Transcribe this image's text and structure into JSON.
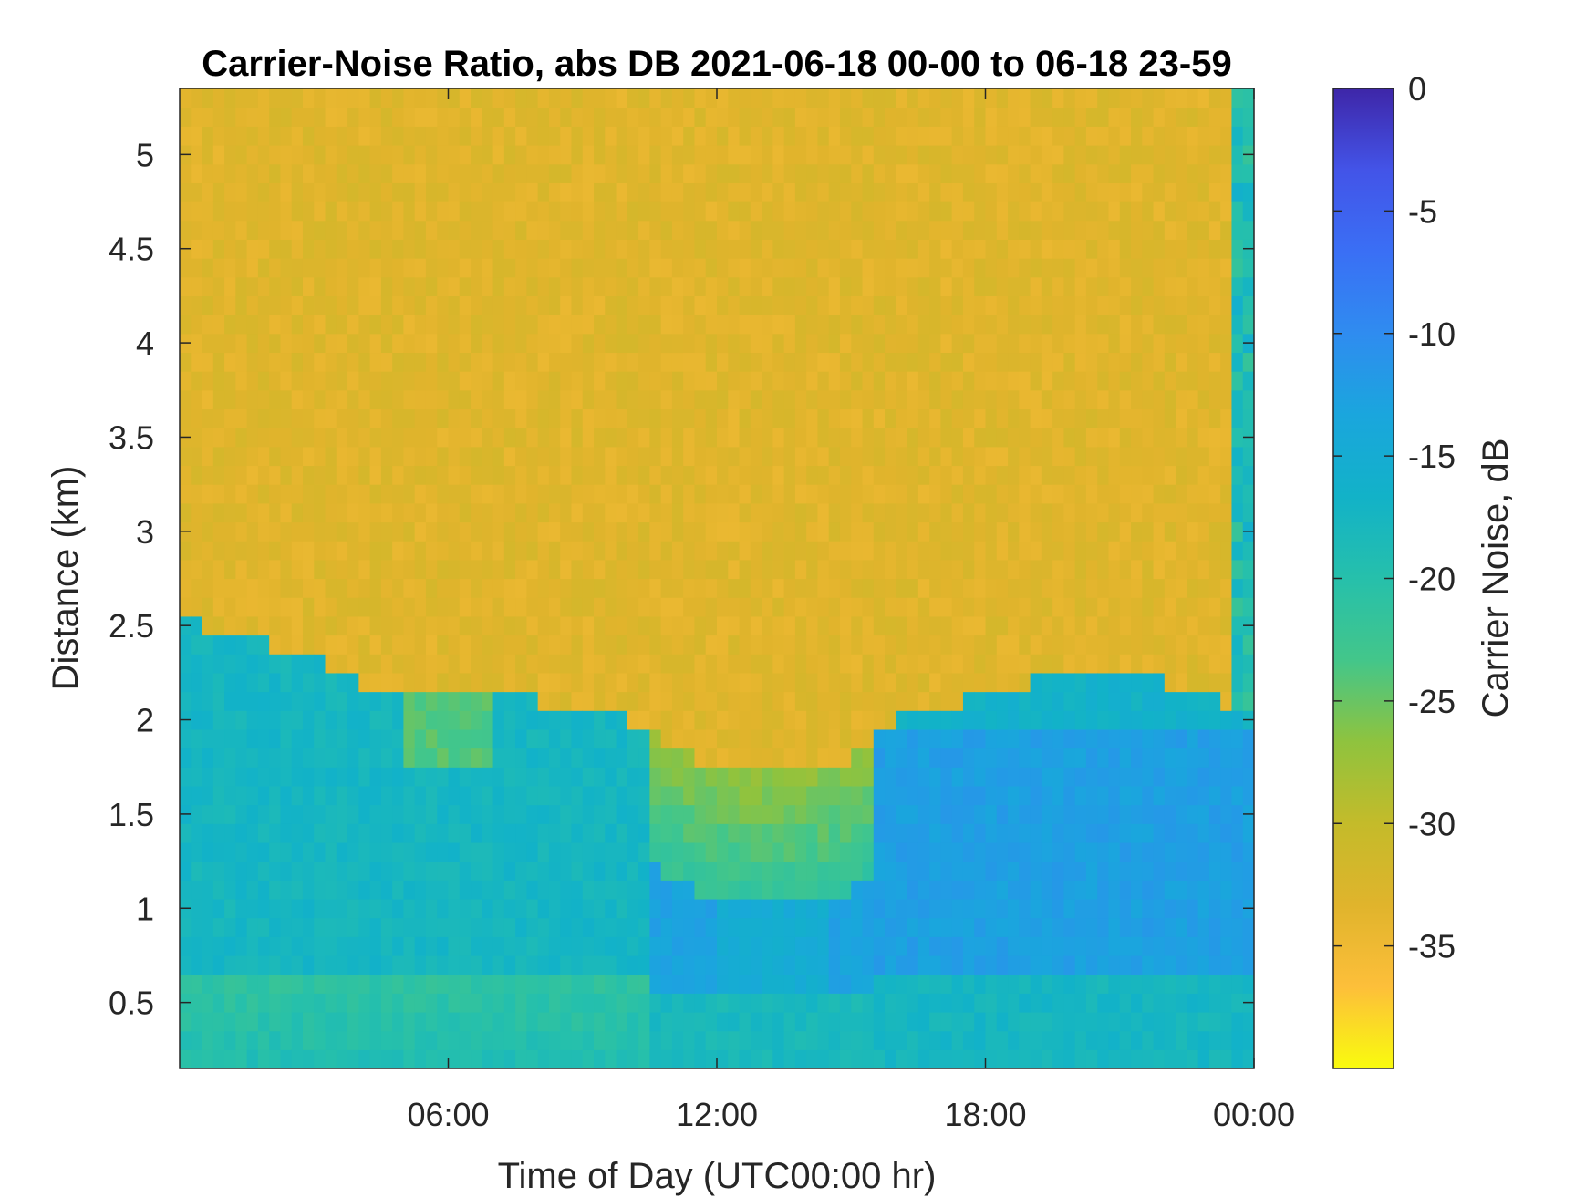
{
  "chart_data": {
    "type": "heatmap",
    "title": "Carrier-Noise Ratio, abs DB 2021-06-18 00-00 to 06-18 23-59",
    "xlabel": "Time of Day (UTC00:00 hr)",
    "ylabel": "Distance (km)",
    "colorbar_label": "Carrier Noise, dB",
    "x_range_hours": [
      0,
      24
    ],
    "x_ticks": [
      {
        "hour": 6,
        "label": "06:00"
      },
      {
        "hour": 12,
        "label": "12:00"
      },
      {
        "hour": 18,
        "label": "18:00"
      },
      {
        "hour": 24,
        "label": "00:00"
      }
    ],
    "y_range_km": [
      0.15,
      5.35
    ],
    "y_ticks": [
      {
        "value": 0.5,
        "label": "0.5"
      },
      {
        "value": 1,
        "label": "1"
      },
      {
        "value": 1.5,
        "label": "1.5"
      },
      {
        "value": 2,
        "label": "2"
      },
      {
        "value": 2.5,
        "label": "2.5"
      },
      {
        "value": 3,
        "label": "3"
      },
      {
        "value": 3.5,
        "label": "3.5"
      },
      {
        "value": 4,
        "label": "4"
      },
      {
        "value": 4.5,
        "label": "4.5"
      },
      {
        "value": 5,
        "label": "5"
      }
    ],
    "color_range_db": [
      -40,
      0
    ],
    "colorbar_ticks": [
      {
        "value": 0,
        "label": "0"
      },
      {
        "value": -5,
        "label": "-5"
      },
      {
        "value": -10,
        "label": "-10"
      },
      {
        "value": -15,
        "label": "-15"
      },
      {
        "value": -20,
        "label": "-20"
      },
      {
        "value": -25,
        "label": "-25"
      },
      {
        "value": -30,
        "label": "-30"
      },
      {
        "value": -35,
        "label": "-35"
      }
    ],
    "colormap": [
      "#f9fb0e",
      "#fdbf3a",
      "#e0b42c",
      "#c4bb2a",
      "#8fc33e",
      "#43c68a",
      "#26c0ab",
      "#12b2c8",
      "#1aa6dd",
      "#2f8cf0",
      "#3a6ff5",
      "#4354e8",
      "#3e26a8"
    ],
    "signal_top_km": {
      "hours": [
        0,
        0.5,
        1,
        2,
        3,
        4,
        5,
        6,
        7,
        8,
        9,
        10,
        11,
        12,
        13,
        14,
        15,
        15.5,
        16,
        17,
        17.5,
        18,
        19,
        20,
        21,
        22,
        23,
        23.6,
        24
      ],
      "values": [
        2.55,
        2.5,
        2.45,
        2.4,
        2.35,
        2.2,
        2.15,
        2.1,
        2.1,
        2.1,
        2.08,
        2.0,
        1.85,
        1.75,
        1.72,
        1.75,
        1.8,
        1.9,
        2.0,
        2.05,
        2.1,
        2.1,
        2.2,
        2.25,
        2.25,
        2.2,
        2.15,
        2.05,
        2.0
      ]
    },
    "regions": [
      {
        "description_db": -34,
        "hours": [
          0,
          24
        ],
        "km": [
          2.2,
          5.35
        ]
      },
      {
        "description_db": -18,
        "hours": [
          0,
          10
        ],
        "km": [
          0.15,
          2.2
        ]
      },
      {
        "description_db": -26,
        "hours": [
          11,
          15
        ],
        "km": [
          1.2,
          1.8
        ]
      },
      {
        "description_db": -12,
        "hours": [
          16,
          24
        ],
        "km": [
          0.8,
          2.1
        ]
      },
      {
        "description_db": -21,
        "hours": [
          0,
          24
        ],
        "km": [
          0.15,
          0.6
        ]
      }
    ]
  }
}
